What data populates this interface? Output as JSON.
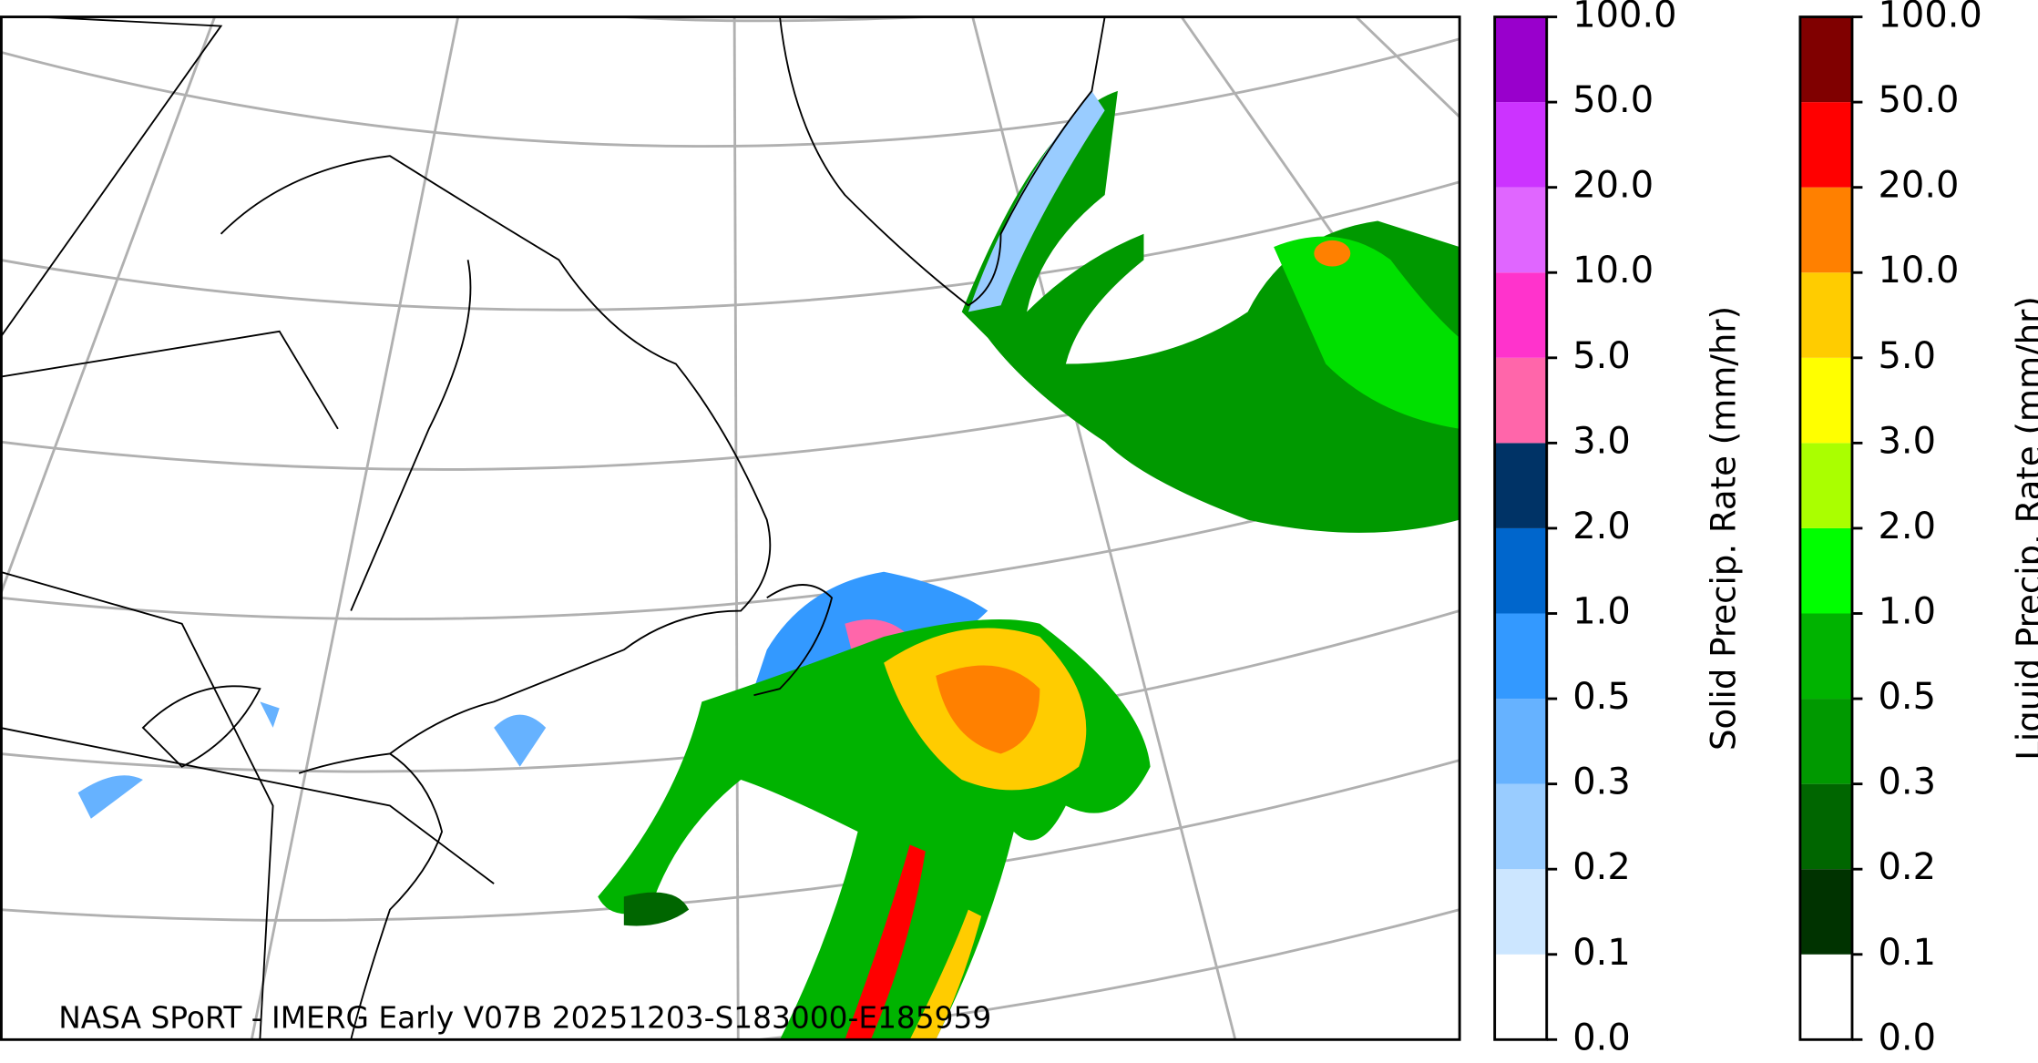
{
  "footer": "NASA SPoRT - IMERG Early V07B 20251203-S183000-E185959",
  "colorbars": [
    {
      "title": "Solid Precip. Rate (mm/hr)",
      "ticks": [
        "0.0",
        "0.1",
        "0.2",
        "0.3",
        "0.5",
        "1.0",
        "2.0",
        "3.0",
        "5.0",
        "10.0",
        "20.0",
        "50.0",
        "100.0"
      ],
      "colors": [
        "#ffffff",
        "#cce6ff",
        "#99ccff",
        "#66b2ff",
        "#3399ff",
        "#0066cc",
        "#003366",
        "#ff66aa",
        "#ff33cc",
        "#e066ff",
        "#cc33ff",
        "#9900cc"
      ]
    },
    {
      "title": "Liquid Precip. Rate (mm/hr)",
      "ticks": [
        "0.0",
        "0.1",
        "0.2",
        "0.3",
        "0.5",
        "1.0",
        "2.0",
        "3.0",
        "5.0",
        "10.0",
        "20.0",
        "50.0",
        "100.0"
      ],
      "colors": [
        "#ffffff",
        "#003300",
        "#006600",
        "#009900",
        "#00b300",
        "#00ff00",
        "#aaff00",
        "#ffff00",
        "#ffcc00",
        "#ff8000",
        "#ff0000",
        "#800000",
        "#400000"
      ]
    }
  ]
}
